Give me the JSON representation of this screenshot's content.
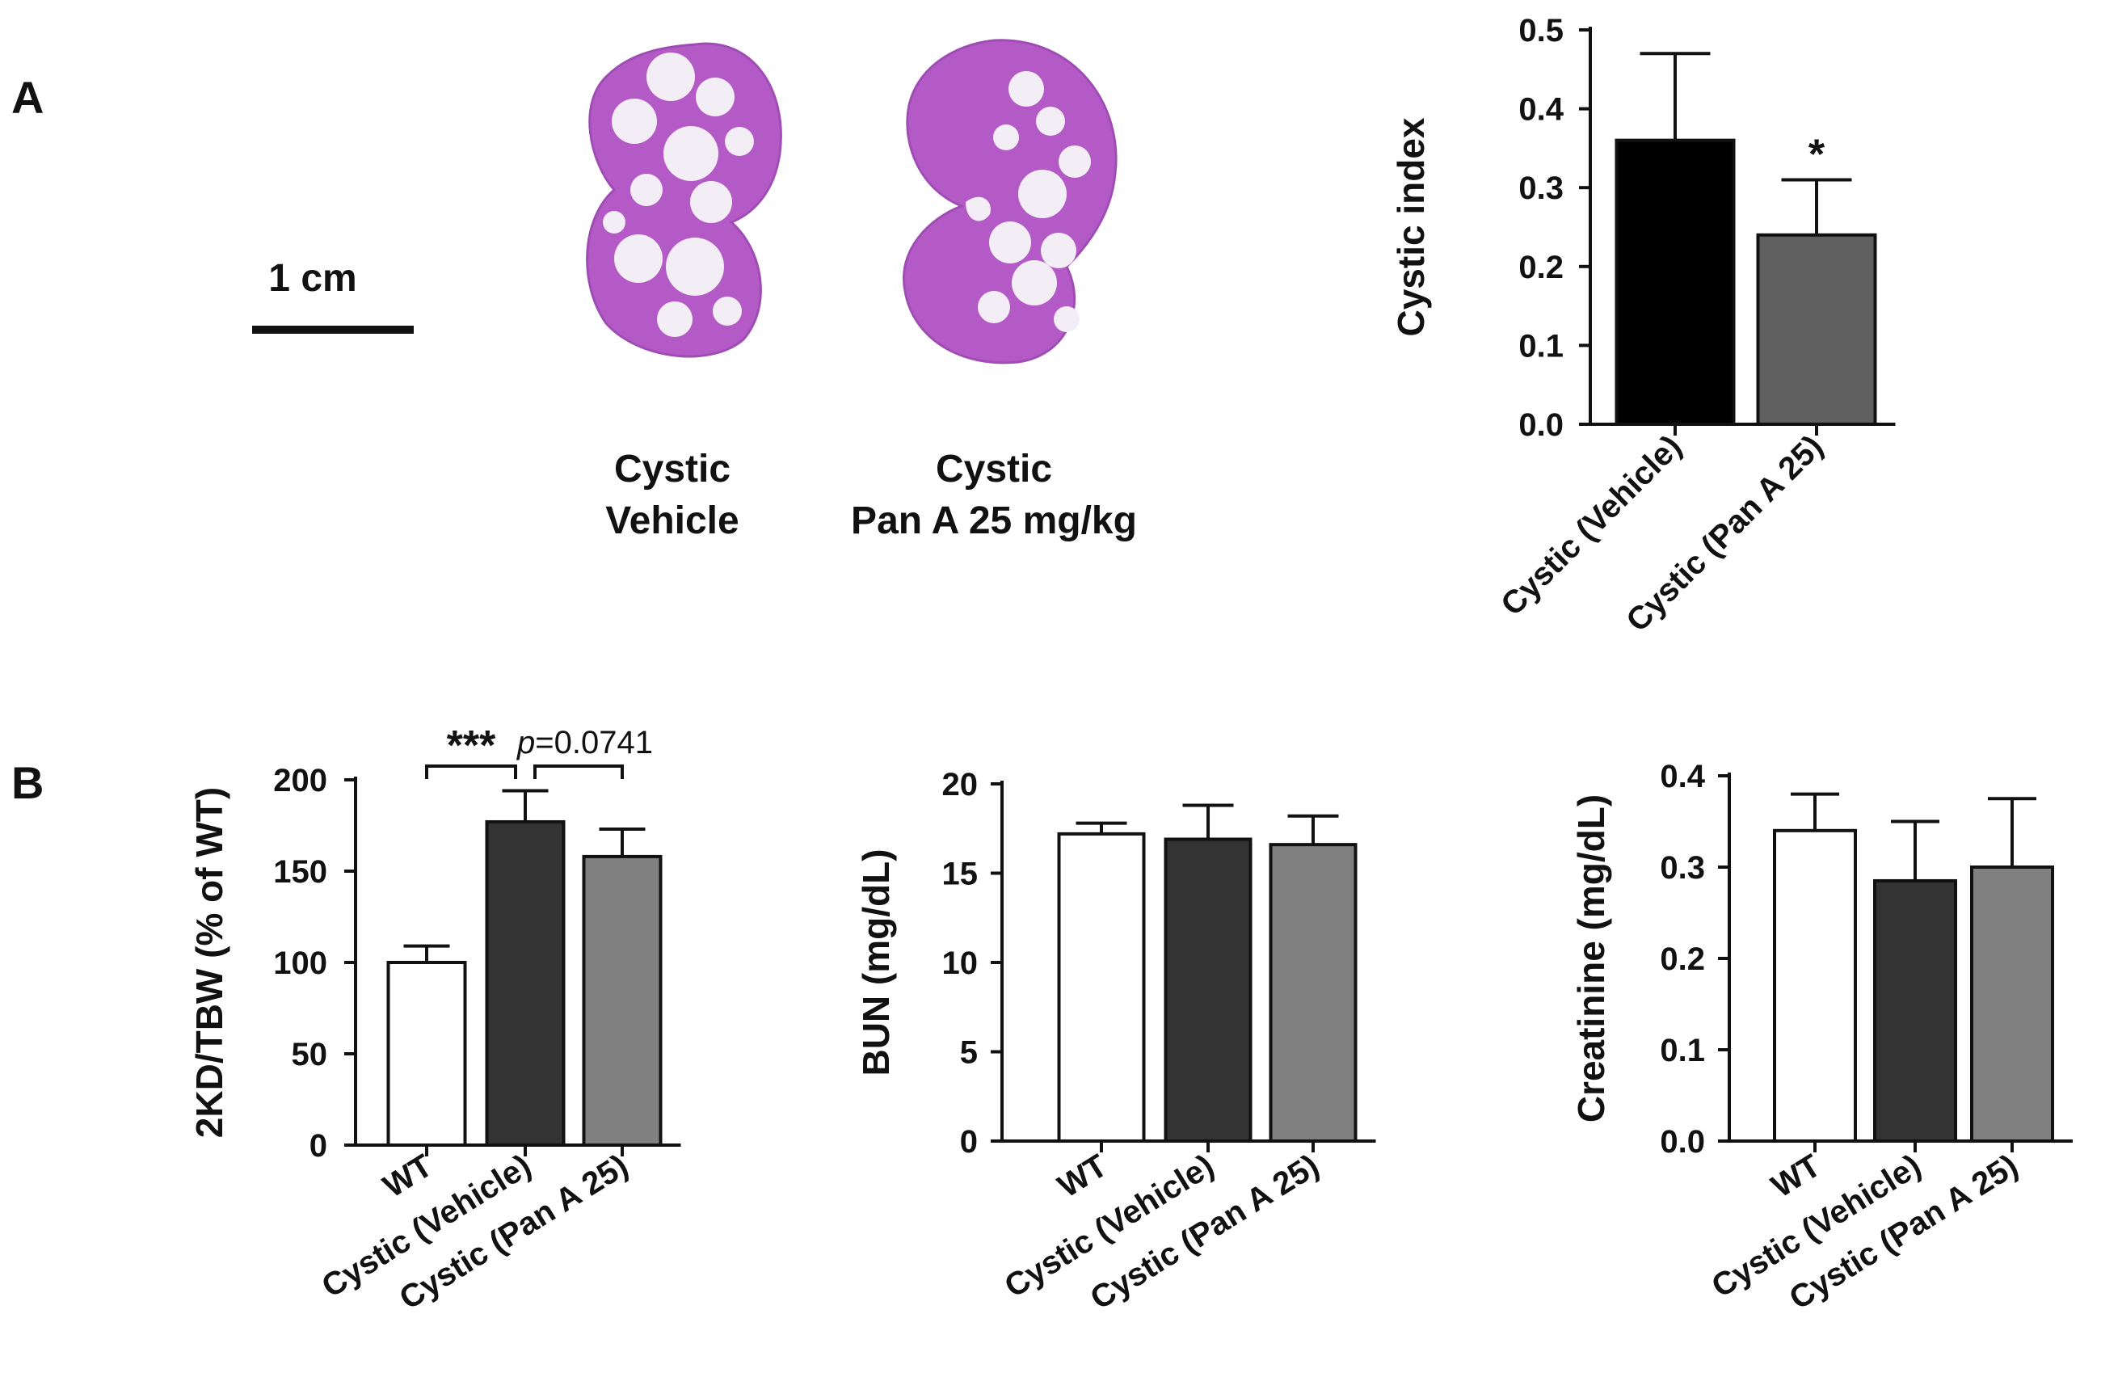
{
  "panel_labels": {
    "a": "A",
    "b": "B"
  },
  "scale_bar": {
    "label": "1 cm"
  },
  "kidney_images": [
    {
      "line1": "Cystic",
      "line2": "Vehicle"
    },
    {
      "line1": "Cystic",
      "line2": "Pan A 25 mg/kg"
    }
  ],
  "colors": {
    "black": "#000000",
    "dark_gray": "#333333",
    "mid_gray": "#5f5f5f",
    "light_gray": "#808080",
    "white": "#ffffff",
    "kidney": "#b45ac6"
  },
  "chart_data": [
    {
      "id": "cystic-index",
      "type": "bar",
      "title": "",
      "xlabel": "",
      "ylabel": "Cystic index",
      "categories": [
        "Cystic (Vehicle)",
        "Cystic (Pan A 25)"
      ],
      "values": [
        0.36,
        0.24
      ],
      "errors": [
        0.11,
        0.07
      ],
      "fills": [
        "#000000",
        "#5f5f5f"
      ],
      "ylim": [
        0,
        0.5
      ],
      "yticks": [
        0.0,
        0.1,
        0.2,
        0.3,
        0.4,
        0.5
      ],
      "ytick_labels": [
        "0.0",
        "0.1",
        "0.2",
        "0.3",
        "0.4",
        "0.5"
      ],
      "annotations": [
        {
          "text": "*",
          "category": "Cystic (Pan A 25)"
        }
      ]
    },
    {
      "id": "kidney-weight",
      "type": "bar",
      "title": "",
      "xlabel": "",
      "ylabel": "2KD/TBW (% of WT)",
      "categories": [
        "WT",
        "Cystic (Vehicle)",
        "Cystic (Pan A 25)"
      ],
      "values": [
        100,
        177,
        158
      ],
      "errors": [
        9,
        17,
        15
      ],
      "fills": [
        "#ffffff",
        "#333333",
        "#808080"
      ],
      "ylim": [
        0,
        200
      ],
      "yticks": [
        0,
        50,
        100,
        150,
        200
      ],
      "ytick_labels": [
        "0",
        "50",
        "100",
        "150",
        "200"
      ],
      "annotations": [
        {
          "text": "***",
          "from": "WT",
          "to": "Cystic (Vehicle)"
        },
        {
          "text_italic": "p",
          "text": "=0.0741",
          "from": "Cystic (Vehicle)",
          "to": "Cystic (Pan A 25)"
        }
      ]
    },
    {
      "id": "bun",
      "type": "bar",
      "title": "",
      "xlabel": "",
      "ylabel": "BUN (mg/dL)",
      "categories": [
        "WT",
        "Cystic (Vehicle)",
        "Cystic (Pan A 25)"
      ],
      "values": [
        17.2,
        16.9,
        16.6
      ],
      "errors": [
        0.6,
        1.9,
        1.6
      ],
      "fills": [
        "#ffffff",
        "#333333",
        "#808080"
      ],
      "ylim": [
        0,
        20
      ],
      "yticks": [
        0,
        5,
        10,
        15,
        20
      ],
      "ytick_labels": [
        "0",
        "5",
        "10",
        "15",
        "20"
      ]
    },
    {
      "id": "creatinine",
      "type": "bar",
      "title": "",
      "xlabel": "",
      "ylabel": "Creatinine (mg/dL)",
      "categories": [
        "WT",
        "Cystic (Vehicle)",
        "Cystic (Pan A 25)"
      ],
      "values": [
        0.34,
        0.285,
        0.3
      ],
      "errors": [
        0.04,
        0.065,
        0.075
      ],
      "fills": [
        "#ffffff",
        "#333333",
        "#808080"
      ],
      "ylim": [
        0,
        0.4
      ],
      "yticks": [
        0.0,
        0.1,
        0.2,
        0.3,
        0.4
      ],
      "ytick_labels": [
        "0.0",
        "0.1",
        "0.2",
        "0.3",
        "0.4"
      ]
    }
  ]
}
